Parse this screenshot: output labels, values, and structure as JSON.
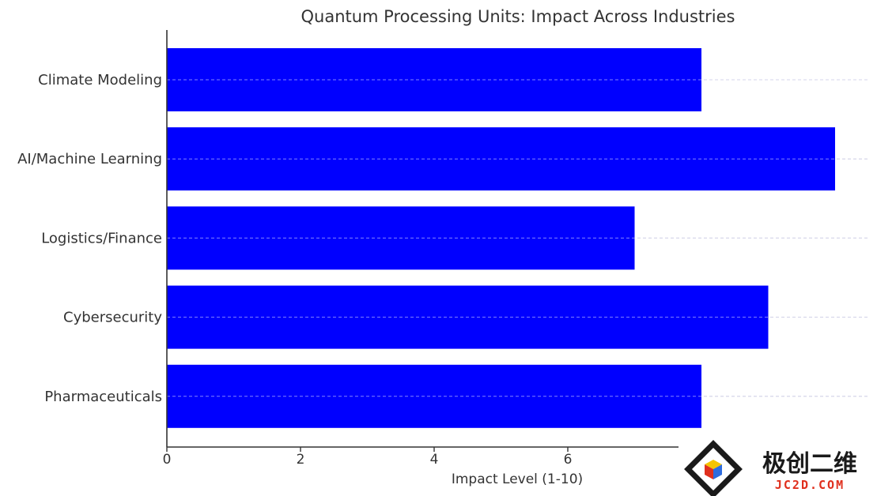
{
  "chart_data": {
    "type": "bar",
    "orientation": "horizontal",
    "title": "Quantum Processing Units: Impact Across Industries",
    "xlabel": "Impact Level (1-10)",
    "ylabel": "",
    "categories": [
      "Climate Modeling",
      "AI/Machine Learning",
      "Logistics/Finance",
      "Cybersecurity",
      "Pharmaceuticals"
    ],
    "values": [
      8,
      10,
      7,
      9,
      8
    ],
    "xlim": [
      0,
      10
    ],
    "xticks": [
      "0",
      "2",
      "4",
      "6"
    ],
    "grid": "x-dashed",
    "bar_color": "#0000ff"
  },
  "watermark": {
    "text_cn": "极创二维",
    "text_en": "JC2D.COM",
    "icon": "diamond-cube-logo"
  }
}
